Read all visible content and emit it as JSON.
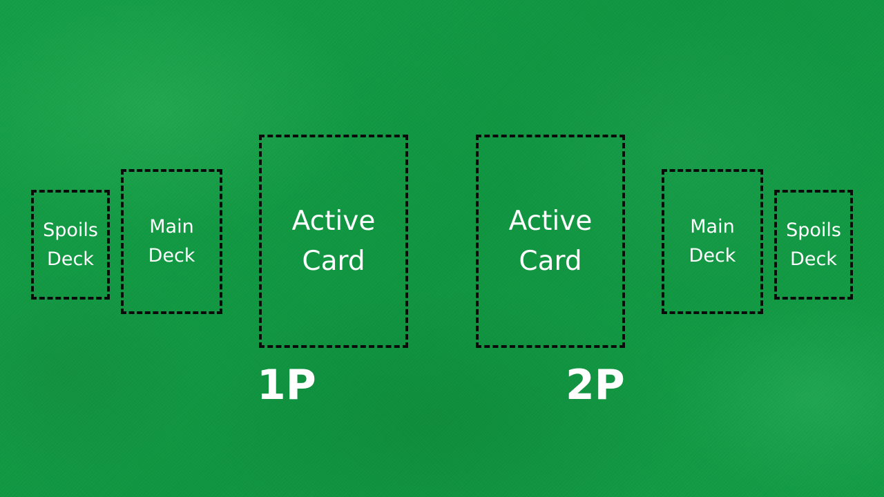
{
  "table": {
    "felt_color": "#119a42",
    "outline_color": "#0a0a0a",
    "text_color": "#ffffff"
  },
  "player1": {
    "label": "1P",
    "spoils_deck": {
      "line1": "Spoils",
      "line2": "Deck"
    },
    "main_deck": {
      "line1": "Main",
      "line2": "Deck"
    },
    "active_card": {
      "line1": "Active",
      "line2": "Card"
    }
  },
  "player2": {
    "label": "2P",
    "active_card": {
      "line1": "Active",
      "line2": "Card"
    },
    "main_deck": {
      "line1": "Main",
      "line2": "Deck"
    },
    "spoils_deck": {
      "line1": "Spoils",
      "line2": "Deck"
    }
  }
}
